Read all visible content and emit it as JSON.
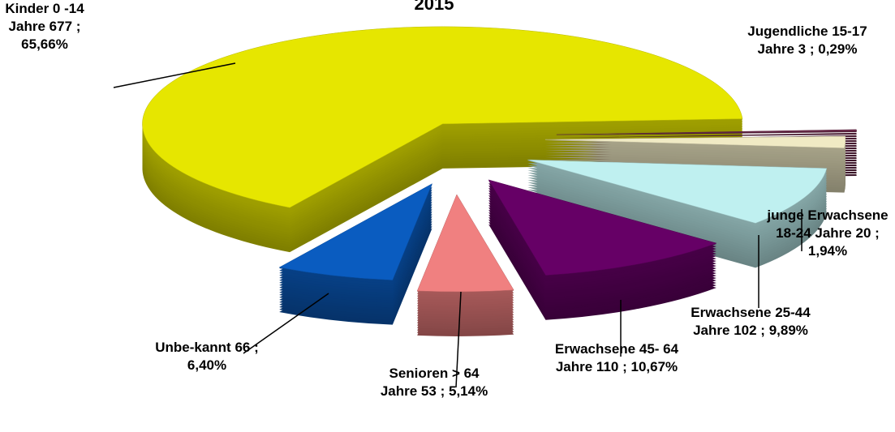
{
  "chart_data": {
    "type": "pie3d",
    "title": "2015",
    "categories": [
      "Kinder 0 -14 Jahre",
      "Jugendliche 15-17 Jahre",
      "junge Erwachsene 18-24 Jahre",
      "Erwachsene 25-44 Jahre",
      "Erwachsene 45- 64 Jahre",
      "Senioren > 64 Jahre",
      "Unbe-kannt"
    ],
    "values": [
      677,
      3,
      20,
      102,
      110,
      53,
      66
    ],
    "percentages": [
      65.66,
      0.29,
      1.94,
      9.89,
      10.67,
      5.14,
      6.4
    ],
    "percentage_labels": [
      "65,66%",
      "0,29%",
      "1,94%",
      "9,89%",
      "10,67%",
      "5,14%",
      "6,40%"
    ],
    "label_separator": ";",
    "colors": [
      "#e6e600",
      "#6b2a4a",
      "#f0eac4",
      "#bff0f0",
      "#660066",
      "#f08080",
      "#0a5cc0"
    ]
  }
}
